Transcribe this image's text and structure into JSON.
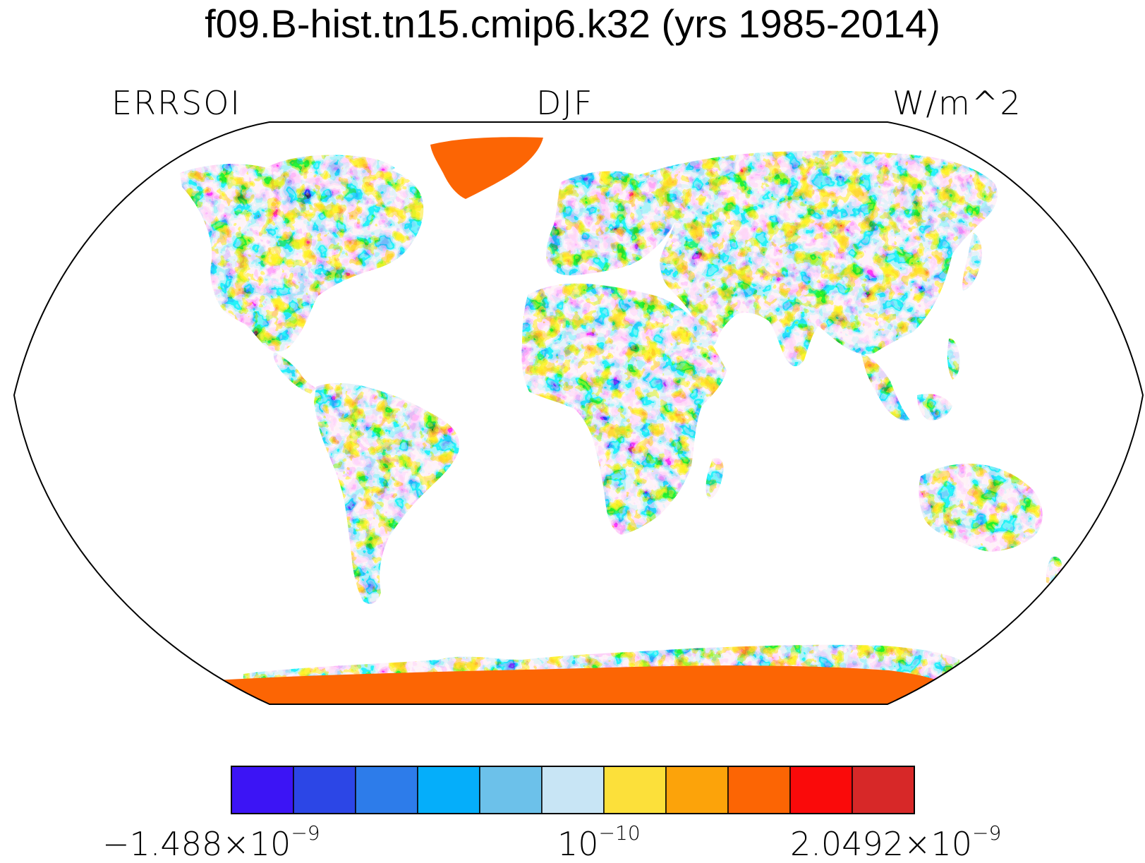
{
  "title": "f09.B-hist.tn15.cmip6.k32 (yrs 1985-2014)",
  "subtitle_left": "ERRSOI",
  "subtitle_center": "DJF",
  "subtitle_right": "W/m^2",
  "colorbar": {
    "colors": [
      "#3c14f5",
      "#2c46e6",
      "#2d7cea",
      "#05aefa",
      "#6cc1ea",
      "#c8e5f5",
      "#fce03a",
      "#fca30a",
      "#fc6504",
      "#fa0a0a",
      "#d72828"
    ],
    "label_left": {
      "mantissa": "−1.488×10",
      "exponent": "−9"
    },
    "label_mid": {
      "mantissa": "10",
      "exponent": "−10"
    },
    "label_right": {
      "mantissa": "2.0492×10",
      "exponent": "−9"
    }
  },
  "map": {
    "projection": "Robinson",
    "ocean_fill": "#ffffff",
    "ice_sheet_color": "#fc6504"
  }
}
